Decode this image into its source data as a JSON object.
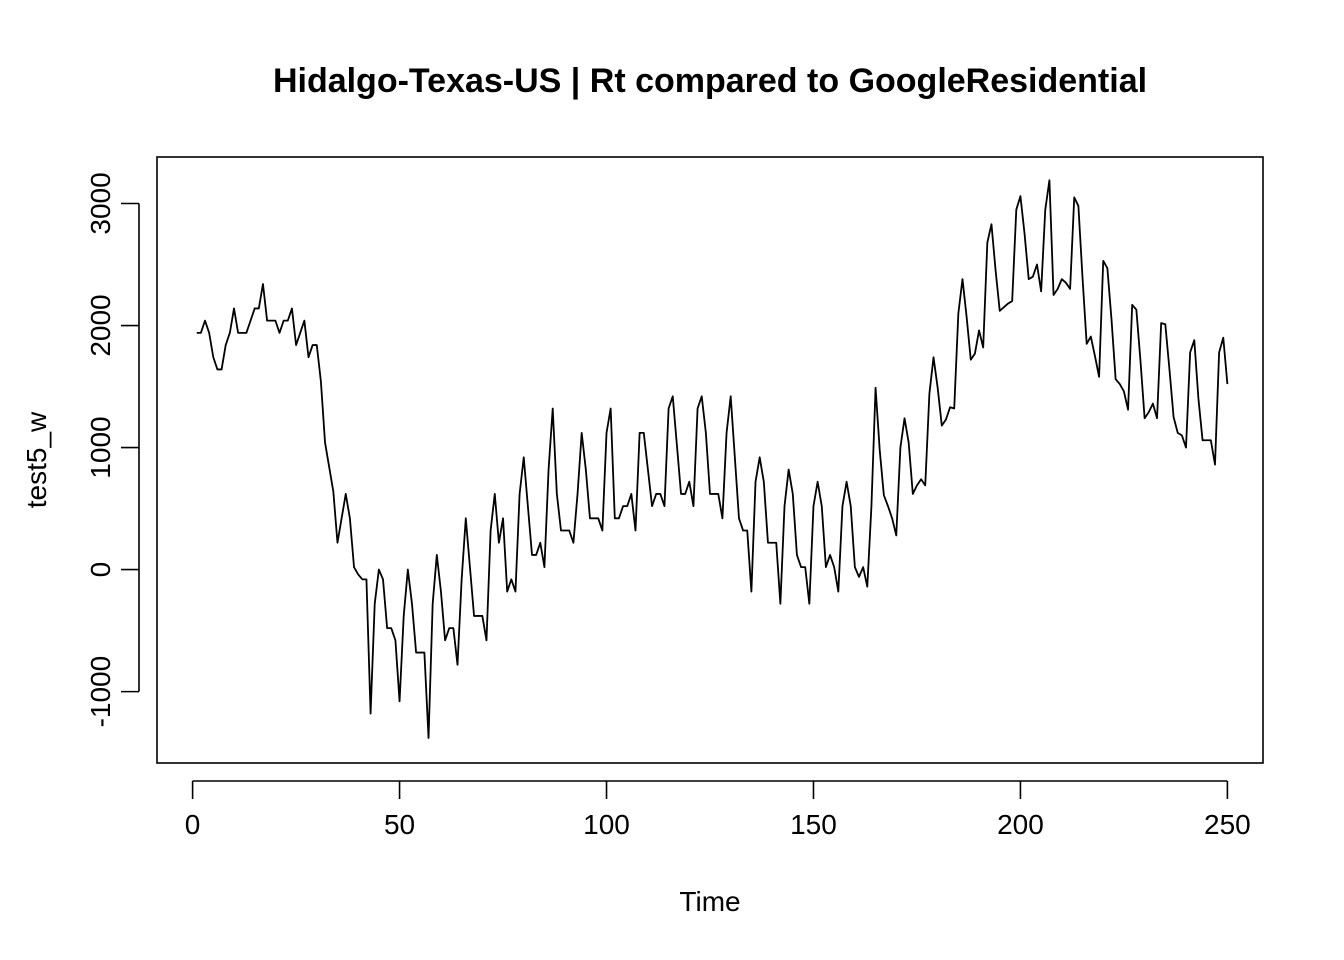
{
  "chart_data": {
    "type": "line",
    "title": "Hidalgo-Texas-US | Rt compared to GoogleResidential",
    "xlabel": "Time",
    "ylabel": "test5_w",
    "xlim": [
      -8.6,
      258.6
    ],
    "ylim": [
      -1585,
      3381
    ],
    "xticks": [
      0,
      50,
      100,
      150,
      200,
      250
    ],
    "yticks": [
      -1000,
      0,
      1000,
      2000,
      3000
    ],
    "xtick_labels": [
      "0",
      "50",
      "100",
      "150",
      "200",
      "250"
    ],
    "ytick_labels": [
      "-1000",
      "0",
      "1000",
      "2000",
      "3000"
    ],
    "grid": false,
    "color": "#000000",
    "x_start": 1,
    "values": [
      1940,
      1940,
      2040,
      1940,
      1740,
      1640,
      1640,
      1840,
      1940,
      2140,
      1940,
      1940,
      1940,
      2040,
      2140,
      2140,
      2340,
      2040,
      2040,
      2040,
      1940,
      2040,
      2040,
      2140,
      1840,
      1940,
      2040,
      1740,
      1840,
      1840,
      1540,
      1040,
      840,
      640,
      220,
      420,
      620,
      420,
      20,
      -40,
      -80,
      -80,
      -1180,
      -280,
      0,
      -80,
      -480,
      -480,
      -580,
      -1080,
      -380,
      0,
      -280,
      -680,
      -680,
      -680,
      -1380,
      -280,
      120,
      -180,
      -580,
      -480,
      -480,
      -780,
      -80,
      420,
      20,
      -380,
      -380,
      -380,
      -580,
      320,
      620,
      220,
      420,
      -180,
      -80,
      -180,
      620,
      920,
      520,
      120,
      120,
      220,
      20,
      820,
      1320,
      620,
      320,
      320,
      320,
      220,
      620,
      1120,
      820,
      420,
      420,
      420,
      320,
      1120,
      1320,
      420,
      420,
      520,
      520,
      620,
      320,
      1120,
      1120,
      820,
      520,
      620,
      620,
      520,
      1320,
      1420,
      1020,
      620,
      620,
      720,
      520,
      1320,
      1420,
      1120,
      620,
      620,
      620,
      420,
      1120,
      1420,
      920,
      420,
      320,
      320,
      -180,
      720,
      920,
      720,
      220,
      220,
      220,
      -280,
      520,
      820,
      620,
      120,
      20,
      20,
      -280,
      520,
      720,
      520,
      20,
      120,
      20,
      -180,
      520,
      720,
      520,
      20,
      -60,
      20,
      -140,
      520,
      1490,
      980,
      610,
      520,
      420,
      280,
      1000,
      1240,
      1040,
      620,
      690,
      740,
      690,
      1440,
      1740,
      1490,
      1180,
      1230,
      1330,
      1320,
      2100,
      2380,
      2070,
      1720,
      1770,
      1960,
      1820,
      2680,
      2830,
      2450,
      2120,
      2150,
      2180,
      2200,
      2950,
      3060,
      2750,
      2380,
      2400,
      2500,
      2280,
      2950,
      3190,
      2250,
      2300,
      2380,
      2350,
      2300,
      3050,
      2980,
      2390,
      1850,
      1910,
      1750,
      1580,
      2530,
      2470,
      2050,
      1560,
      1520,
      1460,
      1310,
      2170,
      2130,
      1710,
      1240,
      1290,
      1360,
      1240,
      2020,
      2010,
      1640,
      1250,
      1120,
      1100,
      1000,
      1780,
      1880,
      1400,
      1060,
      1060,
      1060,
      860,
      1780,
      1900,
      1520
    ]
  }
}
